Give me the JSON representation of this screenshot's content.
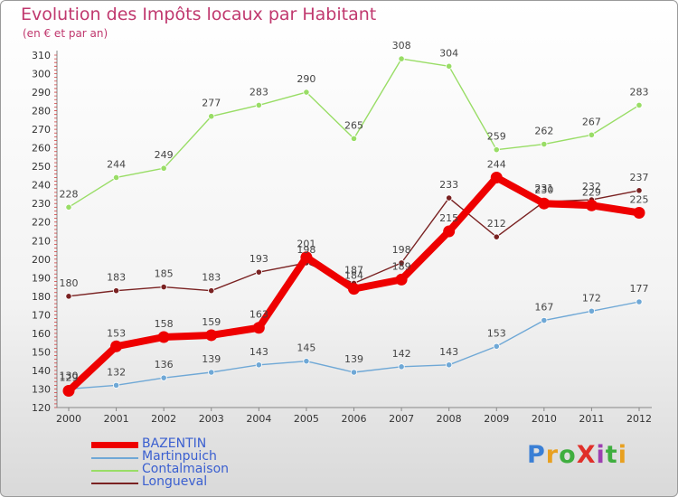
{
  "title": "Evolution des Impôts locaux par Habitant",
  "subtitle": "(en € et par an)",
  "logo": {
    "text": "ProXiti",
    "letter_colors": [
      "#3a7fd5",
      "#e8a020",
      "#3fae3f",
      "#e0302a",
      "#9c3fb0",
      "#3fae3f",
      "#e8a020"
    ]
  },
  "chart_data": {
    "type": "line",
    "title": "Evolution des Impôts locaux par Habitant",
    "subtitle": "(en € et par an)",
    "x": [
      "2000",
      "2001",
      "2002",
      "2003",
      "2004",
      "2005",
      "2006",
      "2007",
      "2008",
      "2009",
      "2010",
      "2011",
      "2012"
    ],
    "ylim": [
      120,
      310
    ],
    "yticks": [
      120,
      130,
      140,
      150,
      160,
      170,
      180,
      190,
      200,
      210,
      220,
      230,
      240,
      250,
      260,
      270,
      280,
      290,
      300,
      310
    ],
    "grid": false,
    "legend_position": "bottom-left",
    "series": [
      {
        "name": "BAZENTIN",
        "color": "#ee0000",
        "values": [
          129,
          153,
          158,
          159,
          163,
          201,
          184,
          189,
          215,
          244,
          230,
          229,
          225
        ]
      },
      {
        "name": "Martinpuich",
        "color": "#6fa8d6",
        "values": [
          130,
          132,
          136,
          139,
          143,
          145,
          139,
          142,
          143,
          153,
          167,
          172,
          177
        ]
      },
      {
        "name": "Contalmaison",
        "color": "#99dd66",
        "values": [
          228,
          244,
          249,
          277,
          283,
          290,
          265,
          308,
          304,
          259,
          262,
          267,
          283
        ]
      },
      {
        "name": "Longueval",
        "color": "#7a2222",
        "values": [
          180,
          183,
          185,
          183,
          193,
          198,
          187,
          198,
          233,
          212,
          231,
          232,
          237
        ]
      }
    ]
  }
}
